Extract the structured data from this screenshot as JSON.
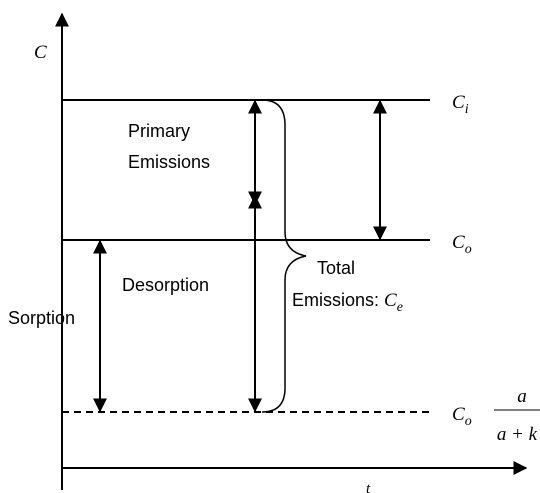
{
  "axes": {
    "y_label": "C",
    "x_label": "t"
  },
  "levels": {
    "ci": {
      "symbol": "C",
      "sub": "i"
    },
    "co": {
      "symbol": "C",
      "sub": "o"
    },
    "co_frac": {
      "symbol": "C",
      "sub": "o",
      "numerator": "a",
      "denominator": "a + k"
    }
  },
  "regions": {
    "primary_line1": "Primary",
    "primary_line2": "Emissions",
    "desorption": "Desorption",
    "sorption": "Sorption",
    "total_line1": "Total",
    "total_line2": "Emissions:",
    "total_symbol": "C",
    "total_sub": "e"
  }
}
